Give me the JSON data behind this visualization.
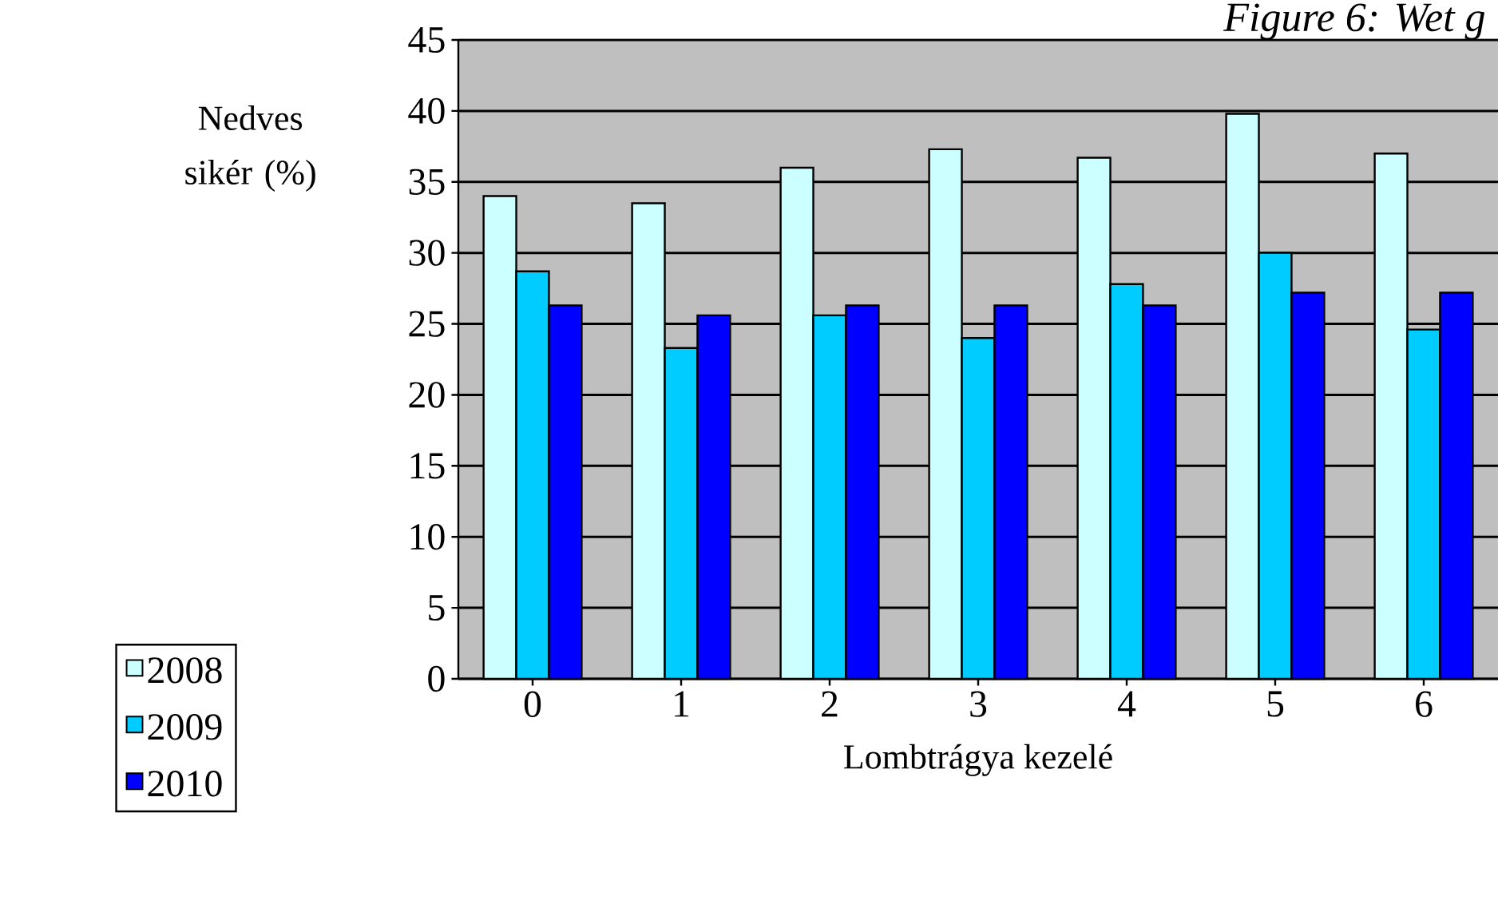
{
  "chart_data": {
    "type": "bar",
    "title": "Figure 6: Wet g",
    "xlabel": "Lombtrágya kezelé",
    "ylabel": "Nedves sikér (%)",
    "categories": [
      "0",
      "1",
      "2",
      "3",
      "4",
      "5",
      "6"
    ],
    "series": [
      {
        "name": "2008",
        "color": "#ccffff",
        "values": [
          34,
          33.5,
          36,
          37.3,
          36.7,
          39.8,
          37
        ]
      },
      {
        "name": "2009",
        "color": "#00ccff",
        "values": [
          28.7,
          23.3,
          25.6,
          24,
          27.8,
          30,
          24.6
        ]
      },
      {
        "name": "2010",
        "color": "#0000ff",
        "values": [
          26.3,
          25.6,
          26.3,
          26.3,
          26.3,
          27.2,
          27.2
        ]
      }
    ],
    "ylim": [
      0,
      45
    ],
    "yticks": [
      0,
      5,
      10,
      15,
      20,
      25,
      30,
      35,
      40,
      45
    ],
    "grid": "y",
    "legend": "bottom left"
  }
}
